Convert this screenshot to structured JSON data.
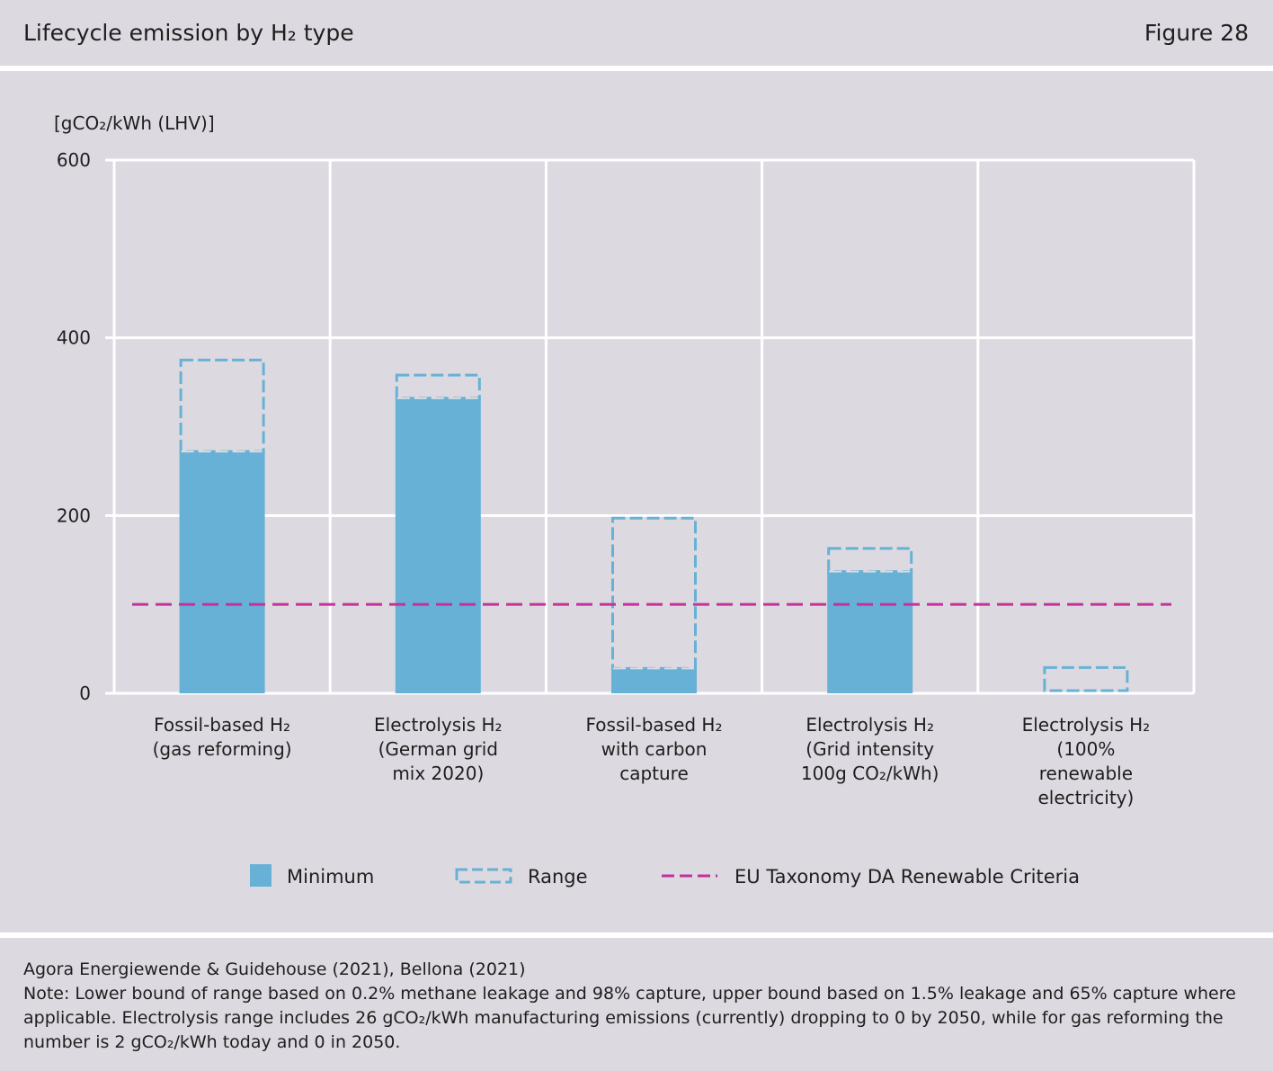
{
  "header": {
    "title": "Lifecycle emission by H₂ type",
    "figure": "Figure 28"
  },
  "colors": {
    "minimum": "#67b1d6",
    "range": "#67b1d6",
    "criteria": "#c5309b",
    "grid": "#ffffff",
    "background": "#dcdae0"
  },
  "chart_data": {
    "type": "bar",
    "ylabel": "[gCO₂/kWh (LHV)]",
    "ylim": [
      0,
      600
    ],
    "yticks": [
      0,
      200,
      400,
      600
    ],
    "grid": true,
    "legend_position": "bottom",
    "categories": [
      [
        "Fossil-based H₂",
        "(gas reforming)"
      ],
      [
        "Electrolysis H₂",
        "(German grid",
        "mix 2020)"
      ],
      [
        "Fossil-based H₂",
        "with carbon",
        "capture"
      ],
      [
        "Electrolysis H₂",
        "(Grid intensity",
        "100g CO₂/kWh)"
      ],
      [
        "Electrolysis H₂",
        "(100%",
        "renewable",
        "electricity)"
      ]
    ],
    "series": [
      {
        "name": "Minimum",
        "values": [
          272,
          332,
          28,
          137,
          0
        ]
      },
      {
        "name": "Range",
        "values": [
          [
            272,
            375
          ],
          [
            332,
            358
          ],
          [
            28,
            197
          ],
          [
            137,
            163
          ],
          [
            3,
            29
          ]
        ]
      }
    ],
    "reference_line": {
      "name": "EU Taxonomy DA Renewable Criteria",
      "value": 100
    }
  },
  "legend": {
    "minimum": "Minimum",
    "range": "Range",
    "criteria": "EU Taxonomy DA Renewable Criteria"
  },
  "footer": {
    "source": "Agora Energiewende & Guidehouse (2021), Bellona (2021)",
    "note": "Note: Lower bound of range based on 0.2% methane leakage and 98% capture, upper bound based on 1.5% leakage and 65% capture where applicable. Electrolysis range includes 26 gCO₂/kWh manufacturing emissions (currently) dropping to 0 by 2050, while for gas reforming the number is 2 gCO₂/kWh today and 0 in 2050."
  }
}
